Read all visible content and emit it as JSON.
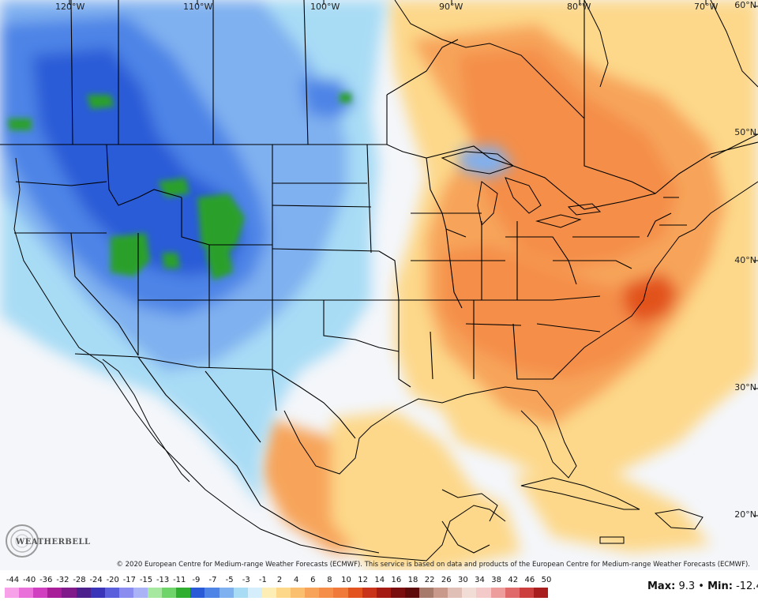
{
  "map": {
    "lon_labels": [
      {
        "text": "120°W",
        "lon": 120
      },
      {
        "text": "110°W",
        "lon": 110
      },
      {
        "text": "100°W",
        "lon": 100
      },
      {
        "text": "90°W",
        "lon": 90
      },
      {
        "text": "80°W",
        "lon": 80
      },
      {
        "text": "70°W",
        "lon": 70
      }
    ],
    "lat_labels": [
      {
        "text": "60°N",
        "lat": 60
      },
      {
        "text": "50°N",
        "lat": 50
      },
      {
        "text": "40°N",
        "lat": 40
      },
      {
        "text": "30°N",
        "lat": 30
      },
      {
        "text": "20°N",
        "lat": 20
      }
    ],
    "copyright": "© 2020 European Centre for Medium-range Weather Forecasts (ECMWF). This service is based on data and products of the European Centre for Medium-range Weather Forecasts (ECMWF).",
    "logo_text": "WEATHERBELL",
    "colors": {
      "strong_cold_green": "#2ca02c",
      "cold_blue_dark": "#2a5bd7",
      "cold_blue": "#4d84e6",
      "cold_blue_light": "#7fb0f0",
      "cool_cyan": "#a8dcf5",
      "neutral": "#f4f6fa",
      "warm_light": "#fdd88a",
      "warm_orange": "#f7a45a",
      "warm_dark": "#f07a3a",
      "warm_hot": "#e2531f",
      "border": "#000000"
    }
  },
  "legend": {
    "labels": [
      "-44",
      "-40",
      "-36",
      "-32",
      "-28",
      "-24",
      "-20",
      "-17",
      "-15",
      "-13",
      "-11",
      "-9",
      "-7",
      "-5",
      "-3",
      "-1",
      "2",
      "4",
      "6",
      "8",
      "10",
      "12",
      "14",
      "16",
      "18",
      "22",
      "26",
      "30",
      "34",
      "38",
      "42",
      "46",
      "50"
    ],
    "colors": [
      "#f7a1e8",
      "#e870d8",
      "#cf3fbf",
      "#a81e99",
      "#801a8a",
      "#4b1f8c",
      "#3a34b8",
      "#5c5fdc",
      "#8b8cf0",
      "#aab3f5",
      "#a7e8a0",
      "#6fd46a",
      "#2fae2f",
      "#2a5bd7",
      "#4d84e6",
      "#7fb0f0",
      "#a8dcf5",
      "#d4effb",
      "#fdeeb5",
      "#fdd88a",
      "#fbbf70",
      "#f7a45a",
      "#f48e48",
      "#f07a3a",
      "#e2531f",
      "#c8331a",
      "#a41b14",
      "#7a0e0e",
      "#5c0a0a",
      "#a67b6b",
      "#c99a8c",
      "#e0c0b6",
      "#f2ddd6",
      "#f4c9c9",
      "#ee9d9d",
      "#e06a6a",
      "#cc3f3f",
      "#a81e1e"
    ]
  },
  "stats": {
    "max_label": "Max:",
    "max_value": "9.3",
    "separator": "•",
    "min_label": "Min:",
    "min_value": "-12.4"
  }
}
